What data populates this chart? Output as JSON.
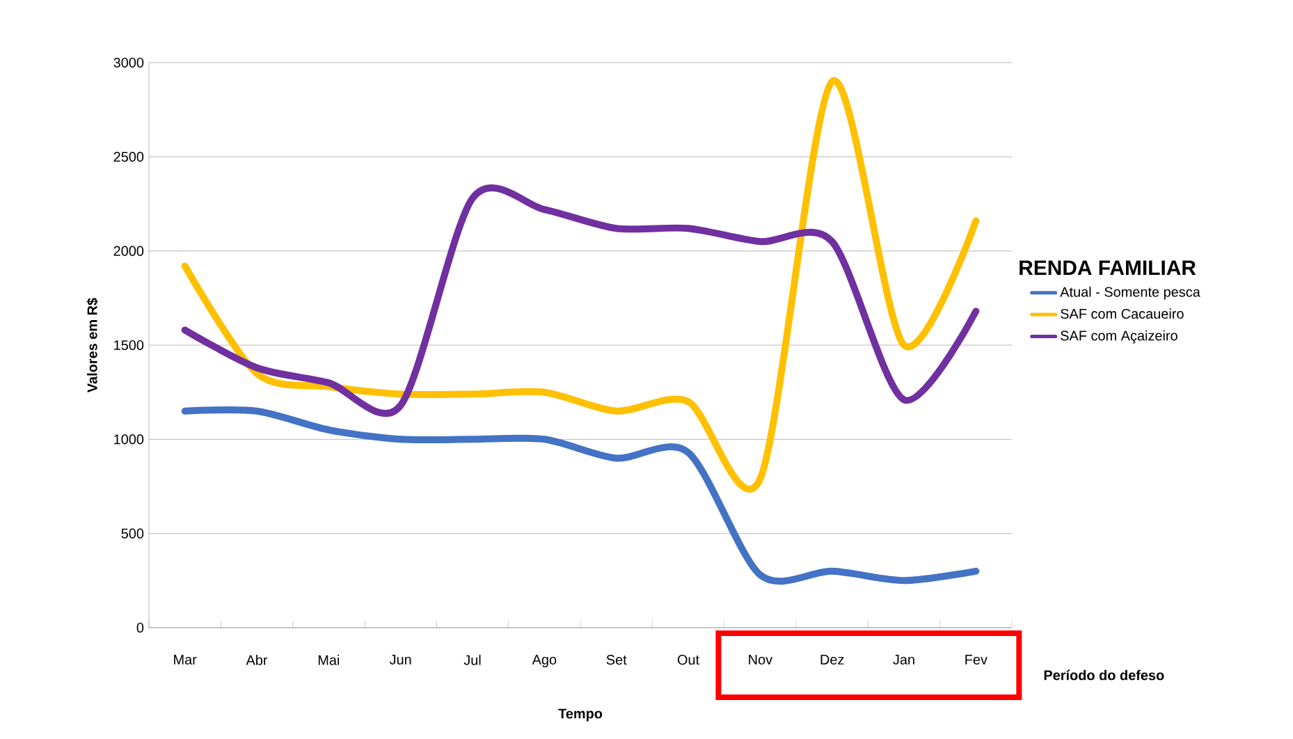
{
  "chart_data": {
    "type": "line",
    "xlabel": "Tempo",
    "ylabel": "Valores em R$",
    "legend_title": "RENDA FAMILIAR",
    "categories": [
      "Mar",
      "Abr",
      "Mai",
      "Jun",
      "Jul",
      "Ago",
      "Set",
      "Out",
      "Nov",
      "Dez",
      "Jan",
      "Fev"
    ],
    "series": [
      {
        "name": "Atual - Somente pesca",
        "color": "#4472c4",
        "values": [
          1150,
          1150,
          1050,
          1000,
          1000,
          1000,
          900,
          930,
          280,
          300,
          250,
          300
        ]
      },
      {
        "name": "SAF com Cacaueiro",
        "color": "#ffc000",
        "values": [
          1920,
          1350,
          1280,
          1240,
          1240,
          1250,
          1150,
          1200,
          790,
          2900,
          1500,
          2160
        ]
      },
      {
        "name": "SAF com Açaizeiro",
        "color": "#7030a0",
        "values": [
          1580,
          1380,
          1300,
          1180,
          2280,
          2220,
          2120,
          2120,
          2050,
          2050,
          1210,
          1680
        ]
      }
    ],
    "ylim": [
      0,
      3000
    ],
    "yticks": [
      0,
      500,
      1000,
      1500,
      2000,
      2500,
      3000
    ],
    "grid": "y",
    "legend": "right",
    "annotations": [
      "Período do defeso"
    ]
  }
}
